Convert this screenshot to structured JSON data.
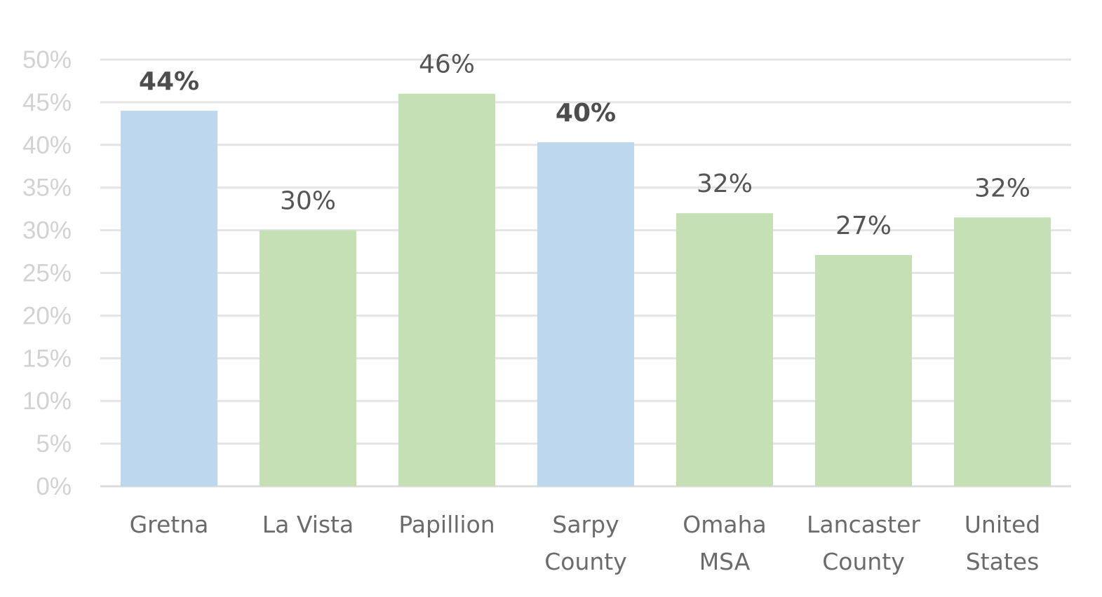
{
  "chart_data": {
    "type": "bar",
    "title": "",
    "xlabel": "",
    "ylabel": "",
    "ylim": [
      0,
      50
    ],
    "yticks": [
      0,
      5,
      10,
      15,
      20,
      25,
      30,
      35,
      40,
      45,
      50
    ],
    "ytick_labels": [
      "0%",
      "5%",
      "10%",
      "15%",
      "20%",
      "25%",
      "30%",
      "35%",
      "40%",
      "45%",
      "50%"
    ],
    "grid": true,
    "categories": [
      [
        "Gretna"
      ],
      [
        "La Vista"
      ],
      [
        "Papillion"
      ],
      [
        "Sarpy",
        "County"
      ],
      [
        "Omaha",
        "MSA"
      ],
      [
        "Lancaster",
        "County"
      ],
      [
        "United",
        "States"
      ]
    ],
    "values": [
      44,
      30,
      46,
      40.3,
      32,
      27.1,
      31.5
    ],
    "data_labels": [
      "44%",
      "30%",
      "46%",
      "40%",
      "32%",
      "27%",
      "32%"
    ],
    "highlighted": [
      true,
      false,
      false,
      true,
      false,
      false,
      false
    ],
    "colors": {
      "highlight": "#bdd7ee",
      "default": "#c5e0b4"
    }
  }
}
